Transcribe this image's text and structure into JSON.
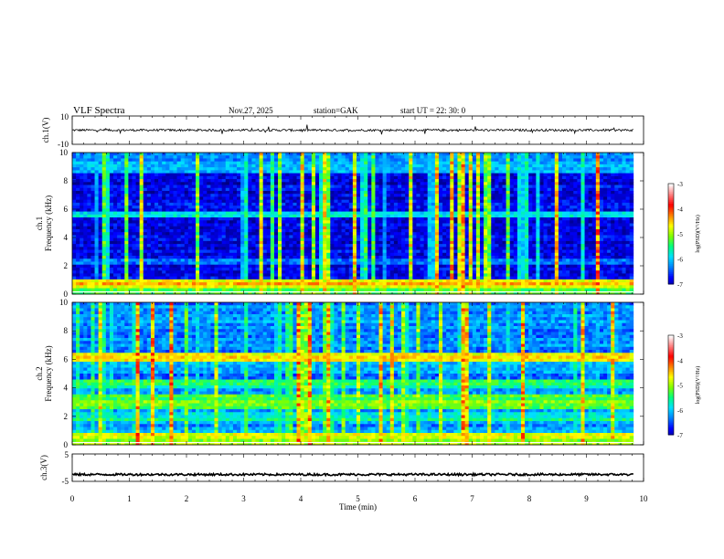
{
  "header": {
    "title": "VLF  Spectra",
    "date": "Nov.27, 2025",
    "station": "station=GAK",
    "start_ut": "start  UT  =    22: 30: 0"
  },
  "chart_data": [
    {
      "type": "line",
      "panel": "ch1-waveform",
      "ylabel": "ch.1(V)",
      "yticks": [
        "10",
        "-10"
      ],
      "ylim": [
        -10,
        10
      ],
      "xlim": [
        0,
        10
      ],
      "series": [
        {
          "values_note_baseline": 0
        }
      ]
    },
    {
      "type": "heatmap",
      "panel": "ch1-spectrogram",
      "ylabel": "ch.1\nFrequency  (kHz)",
      "ylabel_lines": [
        "ch.1",
        "Frequency  (kHz)"
      ],
      "yticks": [
        "0",
        "2",
        "4",
        "6",
        "8",
        "10"
      ],
      "ylim": [
        0,
        10
      ],
      "xlim": [
        0,
        10
      ],
      "colorbar": {
        "label": "log(PSD)(V²/Hz)",
        "ticks": [
          "-3",
          "-4",
          "-5",
          "-6",
          "-7"
        ],
        "range": [
          -7,
          -3
        ]
      }
    },
    {
      "type": "heatmap",
      "panel": "ch2-spectrogram",
      "ylabel_lines": [
        "ch.2",
        "Frequency  (kHz)"
      ],
      "yticks": [
        "0",
        "2",
        "4",
        "6",
        "8",
        "10"
      ],
      "ylim": [
        0,
        10
      ],
      "xlim": [
        0,
        10
      ],
      "colorbar": {
        "label": "log(PSD)(V²/Hz)",
        "ticks": [
          "-3",
          "-4",
          "-5",
          "-6",
          "-7"
        ],
        "range": [
          -7,
          -3
        ]
      }
    },
    {
      "type": "line",
      "panel": "ch3-waveform",
      "ylabel": "ch.3(V)",
      "yticks": [
        "5",
        "-5"
      ],
      "ylim": [
        -5,
        5
      ],
      "xlim": [
        0,
        10
      ],
      "series": [
        {
          "values_note_baseline": -2.5
        }
      ]
    }
  ],
  "xaxis": {
    "label": "Time  (min)",
    "ticks": [
      "0",
      "1",
      "2",
      "3",
      "4",
      "5",
      "6",
      "7",
      "8",
      "9",
      "10"
    ]
  },
  "colors": {
    "colormap": [
      "#000010",
      "#00008a",
      "#0000ff",
      "#0080ff",
      "#00e0ff",
      "#00ff80",
      "#80ff00",
      "#ffff00",
      "#ff8000",
      "#ff0000",
      "#ff8080",
      "#ffffff"
    ]
  }
}
